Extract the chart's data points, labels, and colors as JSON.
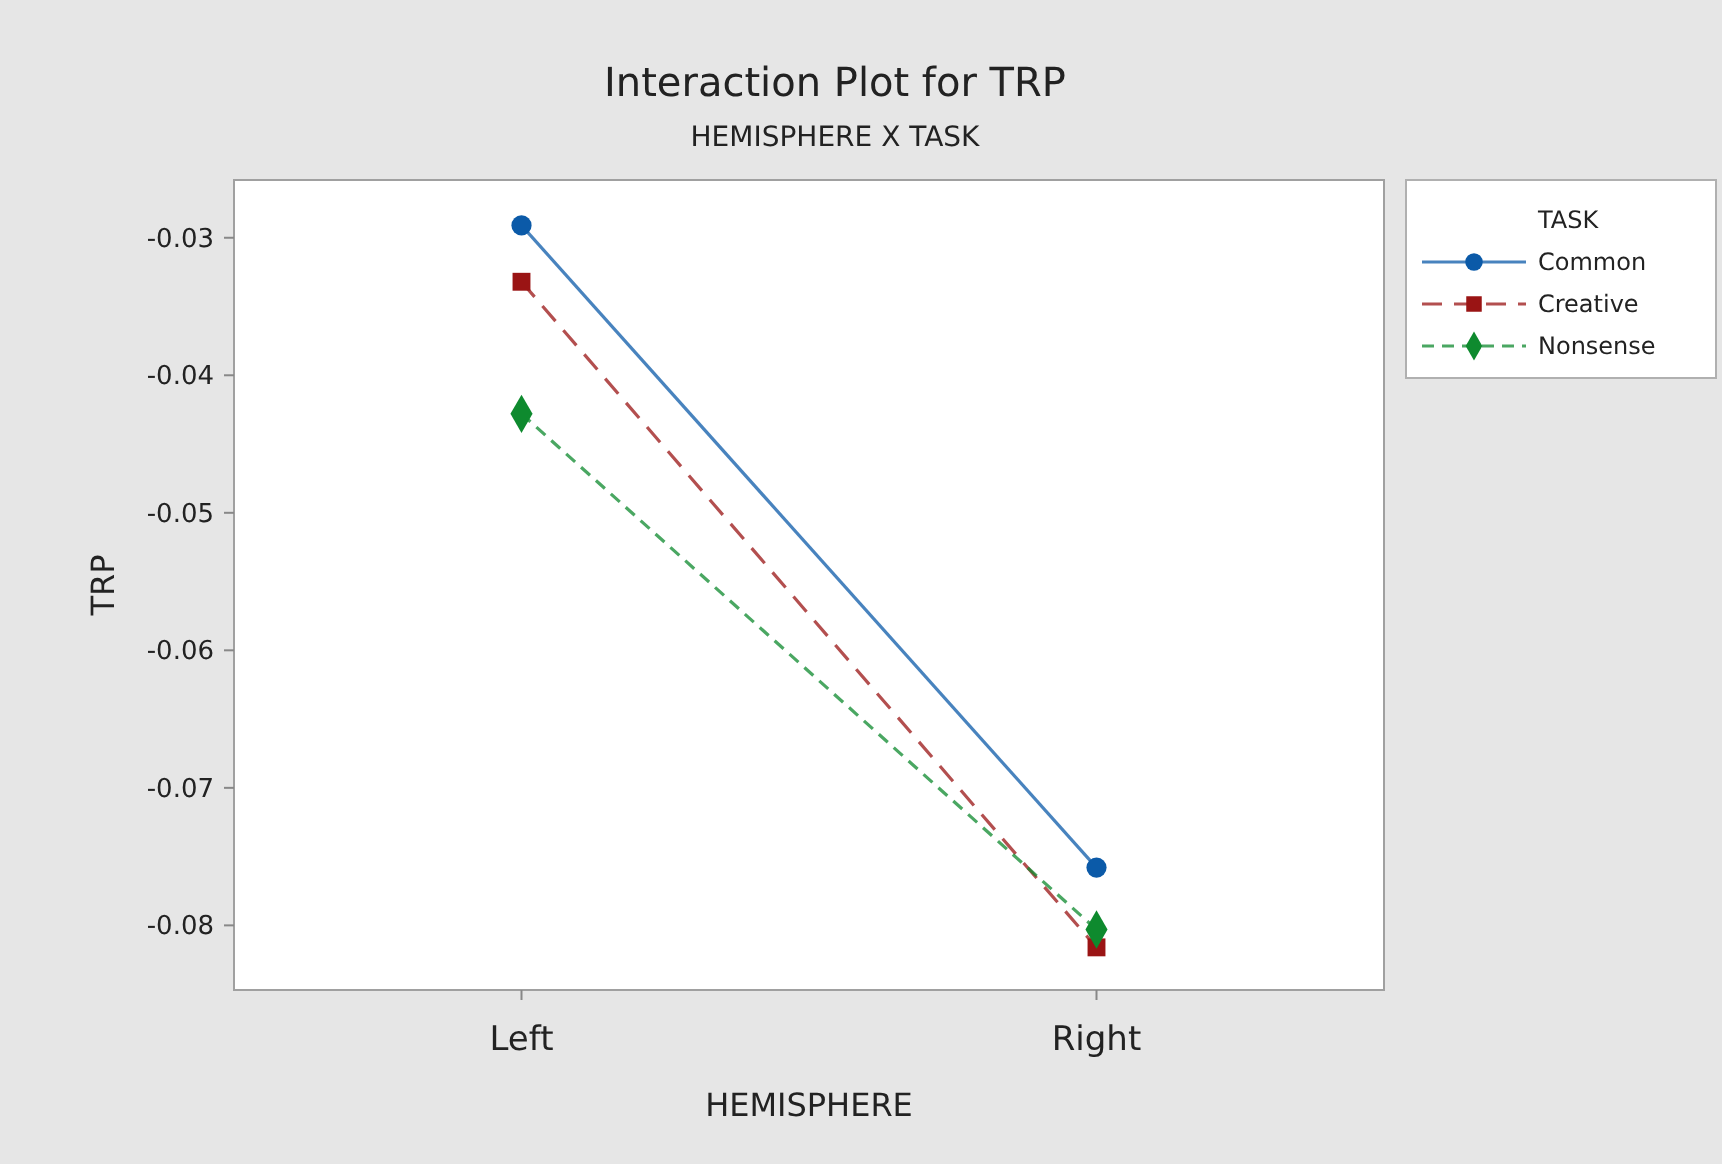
{
  "chart_data": {
    "type": "line",
    "title": "Interaction Plot for TRP",
    "subtitle": "HEMISPHERE X TASK",
    "xlabel": "HEMISPHERE",
    "ylabel": "TRP",
    "legend_title": "TASK",
    "legend": "right",
    "grid": false,
    "categories": [
      "Left",
      "Right"
    ],
    "ylim": [
      -0.0847,
      -0.0258
    ],
    "yticks": [
      -0.08,
      -0.07,
      -0.06,
      -0.05,
      -0.04,
      -0.03
    ],
    "series": [
      {
        "name": "Common",
        "color": "#0b5aa8",
        "values": [
          -0.0291,
          -0.0758
        ],
        "marker": "circle",
        "line_style": "solid"
      },
      {
        "name": "Creative",
        "color": "#9a1414",
        "values": [
          -0.0332,
          -0.0816
        ],
        "marker": "square",
        "line_style": "dashed"
      },
      {
        "name": "Nonsense",
        "color": "#0e8a2e",
        "values": [
          -0.0428,
          -0.0803
        ],
        "marker": "diamond",
        "line_style": "dashed"
      }
    ]
  }
}
